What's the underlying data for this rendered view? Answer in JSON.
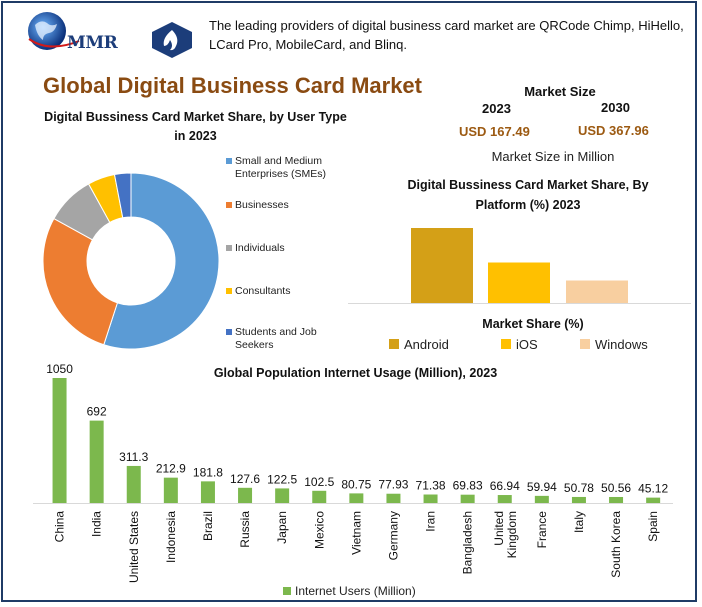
{
  "header": {
    "logo_text": "MMR",
    "intro": "The leading providers of digital business card market are QRCode Chimp, HiHello, LCard Pro, MobileCard, and Blinq."
  },
  "main_title": "Global Digital Business Card Market",
  "colors": {
    "title_brown": "#8a4b12",
    "value_brown": "#9c5a12",
    "frame_blue": "#1f3b66",
    "bar_green": "#7cb84d"
  },
  "market_size": {
    "title": "Market Size",
    "year_a": "2023",
    "value_a": "USD 167.49",
    "year_b": "2030",
    "value_b": "USD 367.96",
    "unit": "Market Size in Million"
  },
  "chart_data": [
    {
      "type": "pie",
      "style": "donut",
      "title": "Digital Bussiness Card Market Share, by User Type in 2023",
      "labels": [
        "Small and Medium Enterprises (SMEs)",
        "Businesses",
        "Individuals",
        "Consultants",
        "Students and Job Seekers"
      ],
      "values": [
        55,
        28,
        9,
        5,
        3
      ],
      "colors": [
        "#5b9bd5",
        "#ed7d31",
        "#a5a5a5",
        "#ffc000",
        "#4472c4"
      ],
      "legend_position": "right"
    },
    {
      "type": "bar",
      "title": "Digital Bussiness Card Market Share, By Platform (%) 2023",
      "categories": [
        "Android",
        "iOS",
        "Windows"
      ],
      "values": [
        50,
        27,
        15
      ],
      "colors": [
        "#d4a017",
        "#ffc000",
        "#f8cfa0"
      ],
      "legend_title": "Market Share (%)",
      "legend_position": "bottom",
      "ylim": [
        0,
        60
      ],
      "grid": false
    },
    {
      "type": "bar",
      "title": "Global Population Internet Usage (Million), 2023",
      "categories": [
        "China",
        "India",
        "United States",
        "Indonesia",
        "Brazil",
        "Russia",
        "Japan",
        "Mexico",
        "Vietnam",
        "Germany",
        "Iran",
        "Bangladesh",
        "United Kingdom",
        "France",
        "Italy",
        "South Korea",
        "Spain"
      ],
      "values": [
        1050,
        692,
        311.3,
        212.9,
        181.8,
        127.6,
        122.5,
        102.5,
        80.75,
        77.93,
        71.38,
        69.83,
        66.94,
        59.94,
        50.78,
        50.56,
        45.12
      ],
      "labels": [
        "1050",
        "692",
        "311.3",
        "212.9",
        "181.8",
        "127.6",
        "122.5",
        "102.5",
        "80.75",
        "77.93",
        "71.38",
        "69.83",
        "66.94",
        "59.94",
        "50.78",
        "50.56",
        "45.12"
      ],
      "series": [
        {
          "name": "Internet Users (Million)"
        }
      ],
      "color": "#7cb84d",
      "ylim": [
        0,
        1050
      ],
      "legend_position": "bottom",
      "grid": false
    }
  ]
}
